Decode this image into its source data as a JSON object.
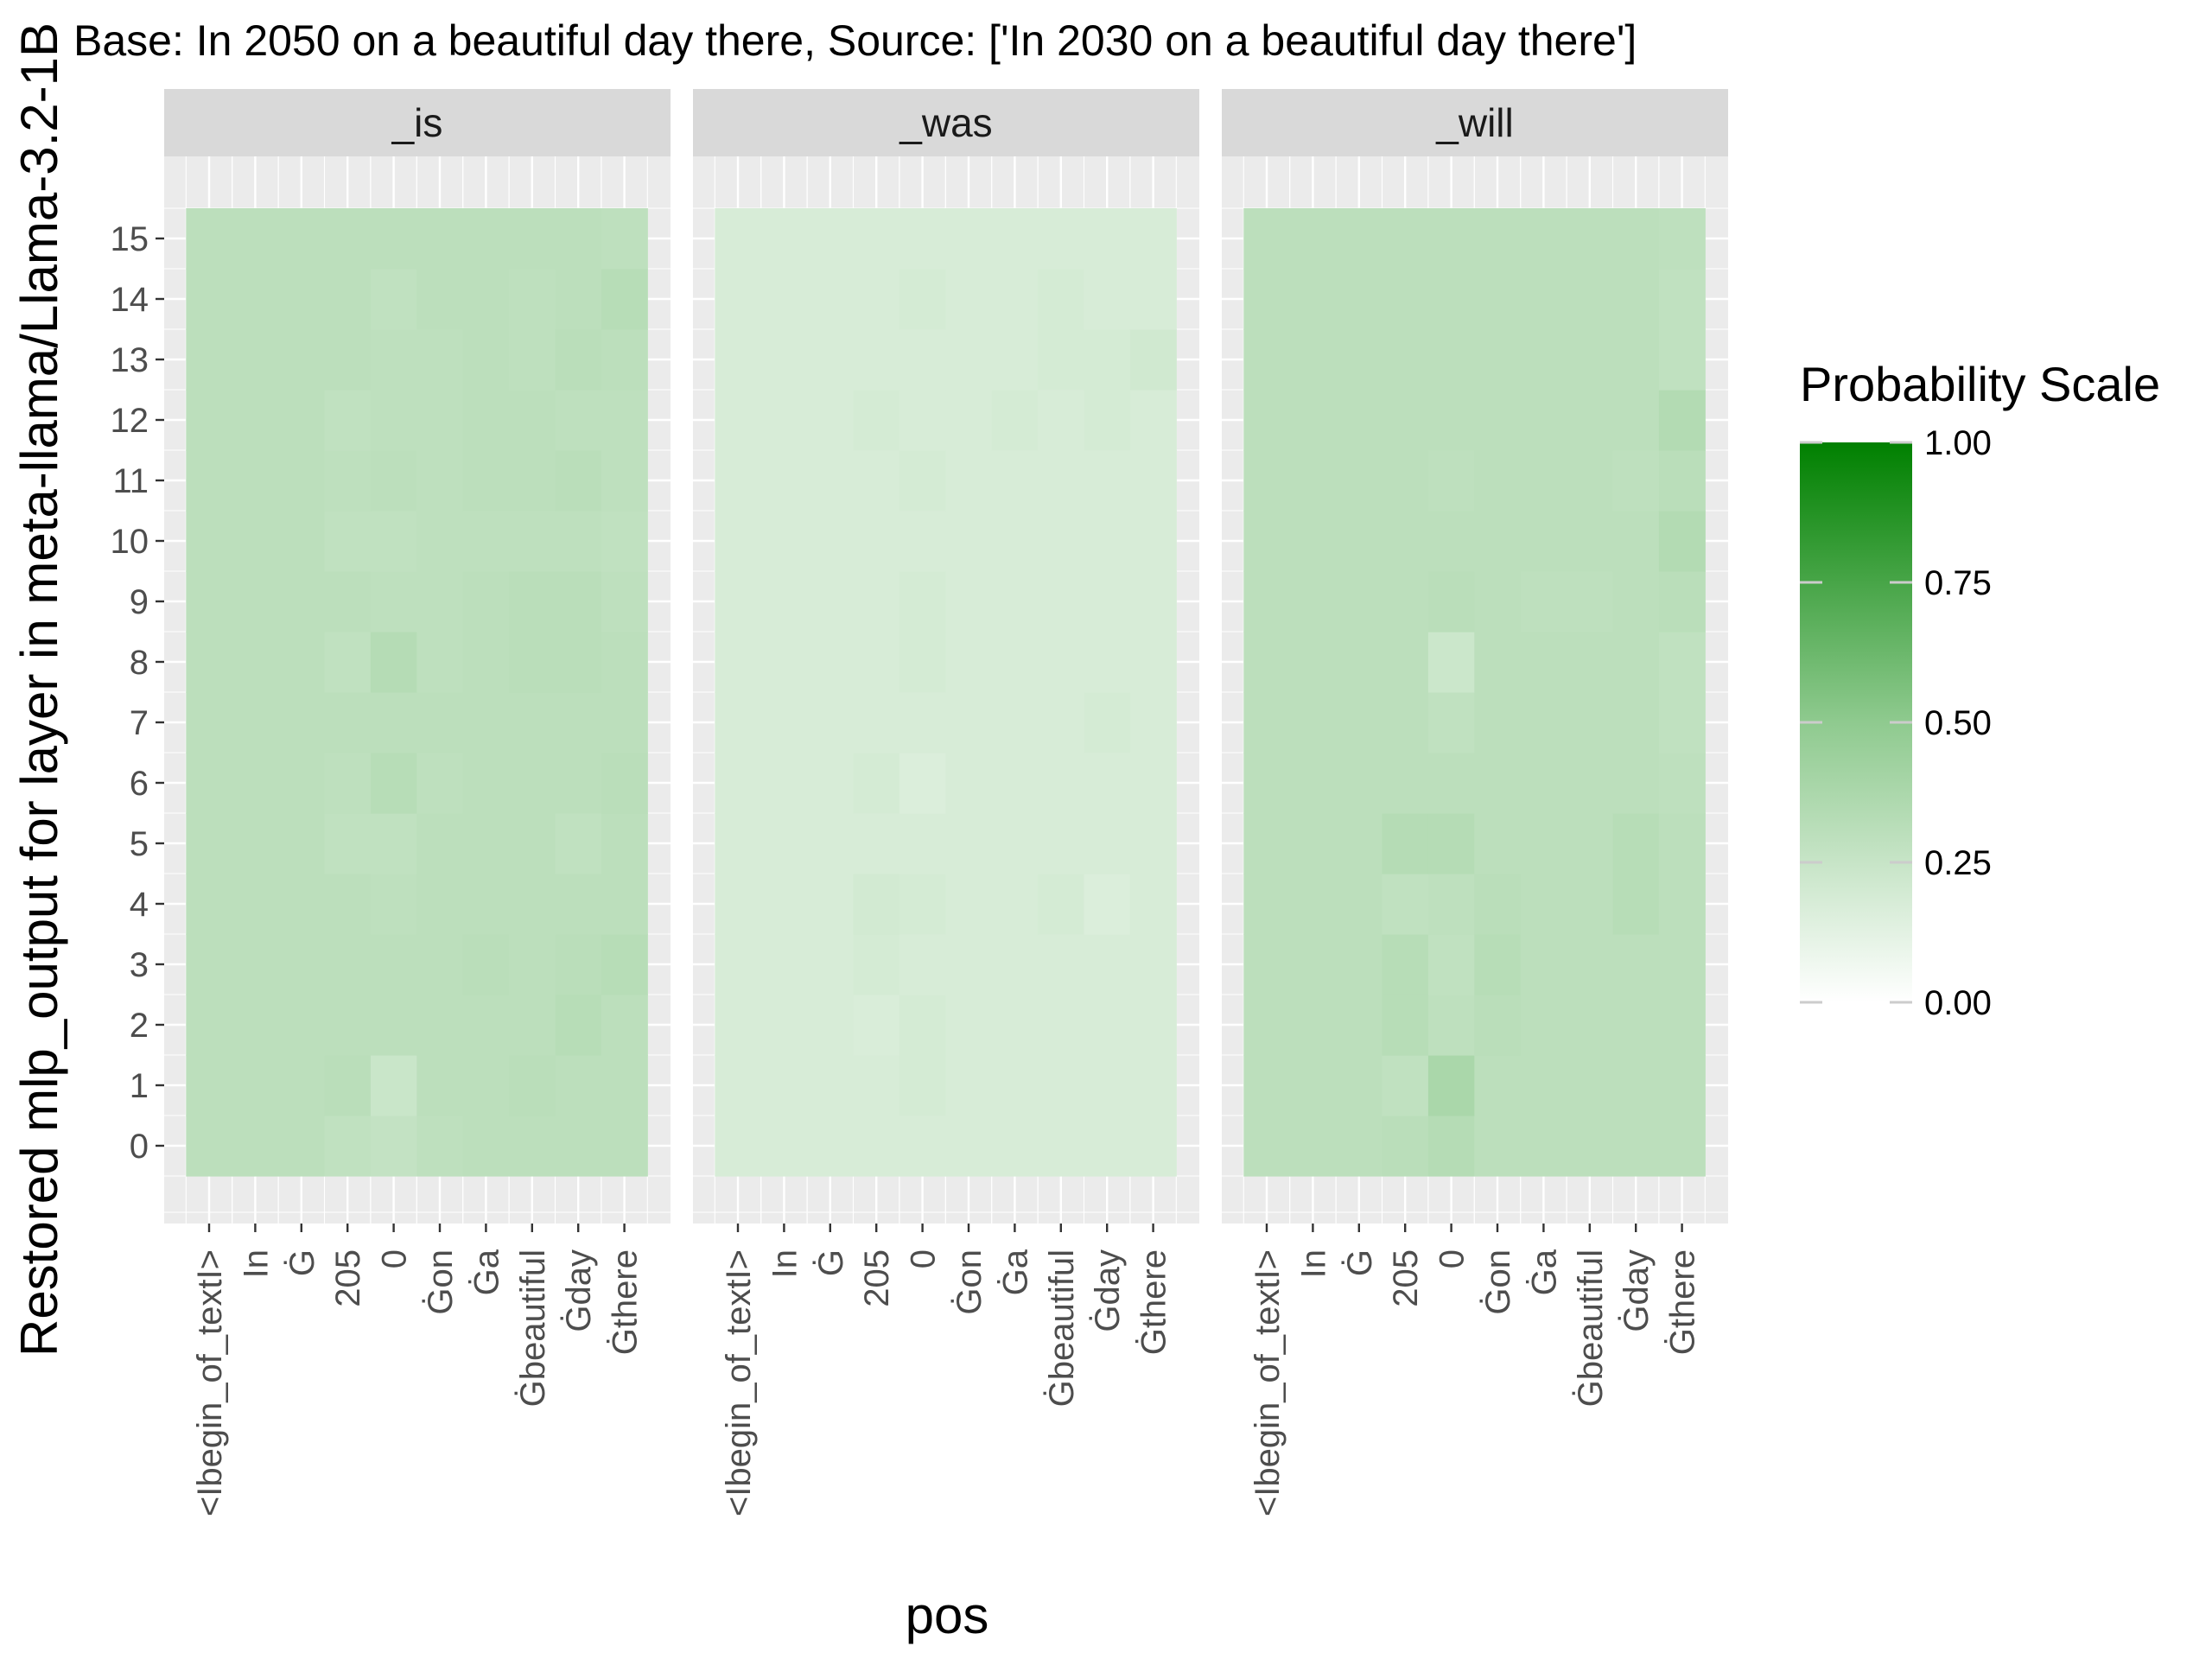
{
  "chart_data": {
    "type": "heatmap",
    "title": "Base: In 2050 on a beautiful day there, Source: ['In 2030 on a beautiful day there']",
    "xlabel": "pos",
    "ylabel": "Restored mlp_output for layer in meta-llama/Llama-3.2-1B",
    "x_categories": [
      "<|begin_of_text|>",
      "In",
      "Ġ",
      "205",
      "0",
      "Ġon",
      "Ġa",
      "Ġbeautiful",
      "Ġday",
      "Ġthere"
    ],
    "x_tick_labels": [
      "<Ibegin_of_textI>",
      "In",
      "Ġ",
      "205",
      "0",
      "Ġon",
      "Ġa",
      "Ġbeautiful",
      "Ġday",
      "Ġthere"
    ],
    "y_categories": [
      0,
      1,
      2,
      3,
      4,
      5,
      6,
      7,
      8,
      9,
      10,
      11,
      12,
      13,
      14,
      15
    ],
    "panels": [
      {
        "name": "_is",
        "values": [
          [
            0.3,
            0.3,
            0.3,
            0.28,
            0.27,
            0.29,
            0.3,
            0.3,
            0.3,
            0.3
          ],
          [
            0.3,
            0.3,
            0.3,
            0.31,
            0.24,
            0.3,
            0.3,
            0.31,
            0.3,
            0.3
          ],
          [
            0.3,
            0.3,
            0.3,
            0.3,
            0.3,
            0.3,
            0.3,
            0.3,
            0.32,
            0.3
          ],
          [
            0.3,
            0.3,
            0.3,
            0.3,
            0.3,
            0.3,
            0.31,
            0.3,
            0.31,
            0.32
          ],
          [
            0.3,
            0.3,
            0.3,
            0.3,
            0.29,
            0.3,
            0.3,
            0.3,
            0.3,
            0.3
          ],
          [
            0.3,
            0.3,
            0.3,
            0.28,
            0.28,
            0.3,
            0.3,
            0.3,
            0.28,
            0.3
          ],
          [
            0.3,
            0.3,
            0.3,
            0.29,
            0.32,
            0.29,
            0.3,
            0.3,
            0.3,
            0.31
          ],
          [
            0.3,
            0.3,
            0.3,
            0.3,
            0.3,
            0.3,
            0.3,
            0.3,
            0.3,
            0.3
          ],
          [
            0.3,
            0.3,
            0.3,
            0.28,
            0.33,
            0.29,
            0.3,
            0.31,
            0.31,
            0.3
          ],
          [
            0.3,
            0.3,
            0.3,
            0.3,
            0.29,
            0.29,
            0.3,
            0.31,
            0.31,
            0.29
          ],
          [
            0.3,
            0.3,
            0.3,
            0.28,
            0.28,
            0.29,
            0.29,
            0.29,
            0.29,
            0.28
          ],
          [
            0.3,
            0.3,
            0.3,
            0.29,
            0.3,
            0.29,
            0.3,
            0.3,
            0.31,
            0.29
          ],
          [
            0.3,
            0.3,
            0.3,
            0.28,
            0.29,
            0.29,
            0.3,
            0.3,
            0.29,
            0.29
          ],
          [
            0.3,
            0.3,
            0.3,
            0.3,
            0.29,
            0.29,
            0.3,
            0.29,
            0.31,
            0.3
          ],
          [
            0.3,
            0.3,
            0.3,
            0.3,
            0.28,
            0.3,
            0.3,
            0.29,
            0.3,
            0.32
          ],
          [
            0.3,
            0.3,
            0.3,
            0.3,
            0.3,
            0.3,
            0.3,
            0.3,
            0.3,
            0.29
          ]
        ]
      },
      {
        "name": "_was",
        "values": [
          [
            0.18,
            0.18,
            0.18,
            0.18,
            0.18,
            0.18,
            0.18,
            0.18,
            0.18,
            0.18
          ],
          [
            0.18,
            0.18,
            0.18,
            0.18,
            0.19,
            0.18,
            0.18,
            0.18,
            0.18,
            0.18
          ],
          [
            0.18,
            0.18,
            0.18,
            0.17,
            0.19,
            0.18,
            0.18,
            0.18,
            0.18,
            0.18
          ],
          [
            0.18,
            0.18,
            0.18,
            0.19,
            0.18,
            0.18,
            0.18,
            0.18,
            0.18,
            0.18
          ],
          [
            0.18,
            0.18,
            0.18,
            0.2,
            0.19,
            0.18,
            0.18,
            0.19,
            0.16,
            0.18
          ],
          [
            0.18,
            0.18,
            0.18,
            0.18,
            0.18,
            0.18,
            0.18,
            0.18,
            0.18,
            0.18
          ],
          [
            0.18,
            0.18,
            0.18,
            0.19,
            0.16,
            0.18,
            0.18,
            0.18,
            0.18,
            0.18
          ],
          [
            0.18,
            0.18,
            0.18,
            0.18,
            0.18,
            0.18,
            0.18,
            0.18,
            0.19,
            0.18
          ],
          [
            0.18,
            0.18,
            0.18,
            0.18,
            0.19,
            0.18,
            0.18,
            0.18,
            0.18,
            0.18
          ],
          [
            0.18,
            0.18,
            0.18,
            0.18,
            0.19,
            0.18,
            0.18,
            0.18,
            0.18,
            0.18
          ],
          [
            0.18,
            0.18,
            0.18,
            0.18,
            0.18,
            0.18,
            0.18,
            0.18,
            0.18,
            0.18
          ],
          [
            0.18,
            0.18,
            0.18,
            0.18,
            0.19,
            0.18,
            0.18,
            0.18,
            0.18,
            0.18
          ],
          [
            0.18,
            0.18,
            0.18,
            0.19,
            0.18,
            0.18,
            0.19,
            0.18,
            0.19,
            0.18
          ],
          [
            0.18,
            0.18,
            0.18,
            0.18,
            0.18,
            0.18,
            0.18,
            0.19,
            0.19,
            0.21
          ],
          [
            0.18,
            0.18,
            0.18,
            0.18,
            0.19,
            0.18,
            0.18,
            0.19,
            0.18,
            0.18
          ],
          [
            0.18,
            0.18,
            0.18,
            0.18,
            0.18,
            0.18,
            0.18,
            0.18,
            0.18,
            0.18
          ]
        ]
      },
      {
        "name": "_will",
        "values": [
          [
            0.3,
            0.3,
            0.3,
            0.31,
            0.33,
            0.3,
            0.3,
            0.3,
            0.3,
            0.3
          ],
          [
            0.3,
            0.3,
            0.3,
            0.28,
            0.38,
            0.3,
            0.3,
            0.3,
            0.3,
            0.3
          ],
          [
            0.3,
            0.3,
            0.3,
            0.32,
            0.29,
            0.31,
            0.3,
            0.3,
            0.3,
            0.3
          ],
          [
            0.3,
            0.3,
            0.3,
            0.32,
            0.28,
            0.32,
            0.3,
            0.3,
            0.3,
            0.3
          ],
          [
            0.3,
            0.3,
            0.3,
            0.28,
            0.29,
            0.31,
            0.3,
            0.3,
            0.32,
            0.3
          ],
          [
            0.3,
            0.3,
            0.3,
            0.33,
            0.33,
            0.3,
            0.3,
            0.3,
            0.32,
            0.3
          ],
          [
            0.3,
            0.3,
            0.3,
            0.3,
            0.3,
            0.3,
            0.3,
            0.3,
            0.3,
            0.29
          ],
          [
            0.3,
            0.3,
            0.3,
            0.3,
            0.28,
            0.3,
            0.3,
            0.3,
            0.3,
            0.28
          ],
          [
            0.3,
            0.3,
            0.3,
            0.3,
            0.23,
            0.3,
            0.3,
            0.3,
            0.3,
            0.28
          ],
          [
            0.3,
            0.3,
            0.3,
            0.3,
            0.31,
            0.3,
            0.29,
            0.29,
            0.3,
            0.31
          ],
          [
            0.3,
            0.3,
            0.3,
            0.3,
            0.3,
            0.3,
            0.3,
            0.3,
            0.3,
            0.34
          ],
          [
            0.3,
            0.3,
            0.3,
            0.3,
            0.29,
            0.3,
            0.3,
            0.3,
            0.29,
            0.31
          ],
          [
            0.3,
            0.3,
            0.3,
            0.3,
            0.3,
            0.3,
            0.3,
            0.3,
            0.3,
            0.34
          ],
          [
            0.3,
            0.3,
            0.3,
            0.3,
            0.3,
            0.3,
            0.3,
            0.3,
            0.3,
            0.28
          ],
          [
            0.3,
            0.3,
            0.3,
            0.3,
            0.3,
            0.3,
            0.3,
            0.3,
            0.3,
            0.28
          ],
          [
            0.3,
            0.3,
            0.3,
            0.3,
            0.3,
            0.3,
            0.3,
            0.3,
            0.3,
            0.29
          ]
        ]
      }
    ],
    "legend": {
      "title": "Probability Scale",
      "position": "right",
      "ticks": [
        1.0,
        0.75,
        0.5,
        0.25,
        0.0
      ],
      "tick_labels": [
        "1.00",
        "0.75",
        "0.50",
        "0.25",
        "0.00"
      ],
      "low_color": "#ffffff",
      "high_color": "#008000",
      "midpoint": 0.5
    },
    "grid": true,
    "panel_background": "#ebebeb",
    "strip_background": "#d9d9d9"
  }
}
